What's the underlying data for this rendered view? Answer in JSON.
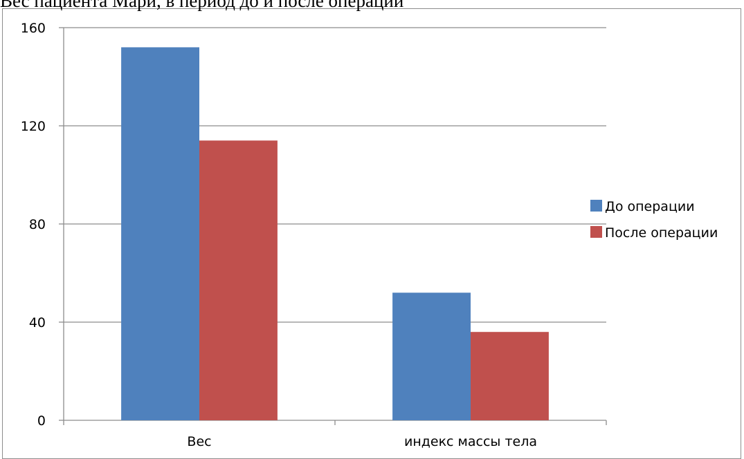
{
  "chart_data": {
    "type": "bar",
    "title": "Вес пациента Мари, в период до и после операции",
    "xlabel": "",
    "ylabel": "",
    "categories": [
      "Вес",
      "индекс массы тела"
    ],
    "series": [
      {
        "name": "До операции",
        "values": [
          152,
          52
        ],
        "color": "#4f81bd"
      },
      {
        "name": "После операции",
        "values": [
          114,
          36
        ],
        "color": "#c0504d"
      }
    ],
    "ylim": [
      0,
      160
    ],
    "yticks": [
      0,
      40,
      80,
      120,
      160
    ],
    "grid": true,
    "legend_position": "right"
  }
}
